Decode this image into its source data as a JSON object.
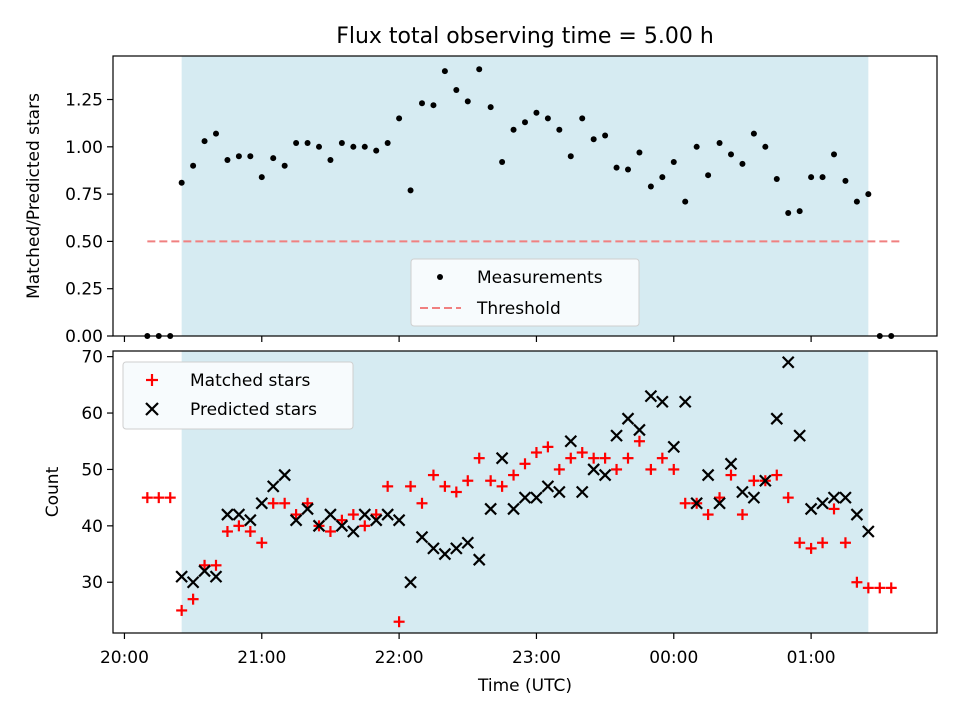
{
  "title": "Flux total observing time = 5.00 h",
  "colors": {
    "observing_window": "#add8e6",
    "measurement": "#000000",
    "threshold": "#f08080",
    "matched": "#ff0000",
    "predicted": "#000000"
  },
  "chart_data": [
    {
      "type": "scatter",
      "panel": "top",
      "title": "Flux total observing time = 5.00 h",
      "xlabel": "",
      "ylabel": "Matched/Predicted stars",
      "ylim": [
        0,
        1.48
      ],
      "yticks": [
        0,
        0.25,
        0.5,
        0.75,
        1.0,
        1.25
      ],
      "ytick_labels": [
        "0.00",
        "0.25",
        "0.50",
        "0.75",
        "1.00",
        "1.25"
      ],
      "observing_window": [
        "20:25",
        "01:25"
      ],
      "legend": {
        "placement": "lower center",
        "entries": [
          "Measurements",
          "Threshold"
        ]
      },
      "threshold": {
        "name": "Threshold",
        "y": 0.5,
        "x_range": [
          "20:10",
          "01:40"
        ]
      },
      "series": [
        {
          "name": "Measurements",
          "x": [
            "20:10",
            "20:15",
            "20:20",
            "20:25",
            "20:30",
            "20:35",
            "20:40",
            "20:45",
            "20:50",
            "20:55",
            "21:00",
            "21:05",
            "21:10",
            "21:15",
            "21:20",
            "21:25",
            "21:30",
            "21:35",
            "21:40",
            "21:45",
            "21:50",
            "21:55",
            "22:00",
            "22:05",
            "22:10",
            "22:15",
            "22:20",
            "22:25",
            "22:30",
            "22:35",
            "22:40",
            "22:45",
            "22:50",
            "22:55",
            "23:00",
            "23:05",
            "23:10",
            "23:15",
            "23:20",
            "23:25",
            "23:30",
            "23:35",
            "23:40",
            "23:45",
            "23:50",
            "23:55",
            "00:00",
            "00:05",
            "00:10",
            "00:15",
            "00:20",
            "00:25",
            "00:30",
            "00:35",
            "00:40",
            "00:45",
            "00:50",
            "00:55",
            "01:00",
            "01:05",
            "01:10",
            "01:15",
            "01:20",
            "01:25",
            "01:30",
            "01:35"
          ],
          "y": [
            0.0,
            0.0,
            0.0,
            0.81,
            0.9,
            1.03,
            1.07,
            0.93,
            0.95,
            0.95,
            0.84,
            0.94,
            0.9,
            1.02,
            1.02,
            1.0,
            0.93,
            1.02,
            1.0,
            1.0,
            0.98,
            1.02,
            1.15,
            0.77,
            1.23,
            1.22,
            1.4,
            1.3,
            1.24,
            1.41,
            1.21,
            0.92,
            1.09,
            1.13,
            1.18,
            1.15,
            1.09,
            0.95,
            1.15,
            1.04,
            1.06,
            0.89,
            0.88,
            0.97,
            0.79,
            0.84,
            0.92,
            0.71,
            1.0,
            0.85,
            1.02,
            0.96,
            0.91,
            1.07,
            1.0,
            0.83,
            0.65,
            0.66,
            0.84,
            0.84,
            0.96,
            0.82,
            0.71,
            0.75,
            0.0,
            0.0
          ]
        }
      ]
    },
    {
      "type": "scatter",
      "panel": "bottom",
      "xlabel": "Time (UTC)",
      "ylabel": "Count",
      "ylim": [
        21,
        71
      ],
      "yticks": [
        30,
        40,
        50,
        60,
        70
      ],
      "ytick_labels": [
        "30",
        "40",
        "50",
        "60",
        "70"
      ],
      "xlim": [
        "19:55",
        "01:55"
      ],
      "xticks": [
        "20:00",
        "21:00",
        "22:00",
        "23:00",
        "00:00",
        "01:00"
      ],
      "observing_window": [
        "20:25",
        "01:25"
      ],
      "legend": {
        "placement": "upper left",
        "entries": [
          "Matched stars",
          "Predicted stars"
        ]
      },
      "series": [
        {
          "name": "Matched stars",
          "marker": "+",
          "x": [
            "20:10",
            "20:15",
            "20:20",
            "20:25",
            "20:30",
            "20:35",
            "20:40",
            "20:45",
            "20:50",
            "20:55",
            "21:00",
            "21:05",
            "21:10",
            "21:15",
            "21:20",
            "21:25",
            "21:30",
            "21:35",
            "21:40",
            "21:45",
            "21:50",
            "21:55",
            "22:00",
            "22:05",
            "22:10",
            "22:15",
            "22:20",
            "22:25",
            "22:30",
            "22:35",
            "22:40",
            "22:45",
            "22:50",
            "22:55",
            "23:00",
            "23:05",
            "23:10",
            "23:15",
            "23:20",
            "23:25",
            "23:30",
            "23:35",
            "23:40",
            "23:45",
            "23:50",
            "23:55",
            "00:00",
            "00:05",
            "00:10",
            "00:15",
            "00:20",
            "00:25",
            "00:30",
            "00:35",
            "00:40",
            "00:45",
            "00:50",
            "00:55",
            "01:00",
            "01:05",
            "01:10",
            "01:15",
            "01:20",
            "01:25",
            "01:30",
            "01:35"
          ],
          "y": [
            45,
            45,
            45,
            25,
            27,
            33,
            33,
            39,
            40,
            39,
            37,
            44,
            44,
            42,
            44,
            40,
            39,
            41,
            42,
            40,
            42,
            47,
            23,
            47,
            44,
            49,
            47,
            46,
            48,
            52,
            48,
            47,
            49,
            51,
            53,
            54,
            50,
            52,
            53,
            52,
            52,
            50,
            52,
            55,
            50,
            52,
            50,
            44,
            44,
            42,
            45,
            49,
            42,
            48,
            48,
            49,
            45,
            37,
            36,
            37,
            43,
            37,
            30,
            29,
            29,
            29
          ]
        },
        {
          "name": "Predicted stars",
          "marker": "x",
          "x": [
            "20:25",
            "20:30",
            "20:35",
            "20:40",
            "20:45",
            "20:50",
            "20:55",
            "21:00",
            "21:05",
            "21:10",
            "21:15",
            "21:20",
            "21:25",
            "21:30",
            "21:35",
            "21:40",
            "21:45",
            "21:50",
            "21:55",
            "22:00",
            "22:05",
            "22:10",
            "22:15",
            "22:20",
            "22:25",
            "22:30",
            "22:35",
            "22:40",
            "22:45",
            "22:50",
            "22:55",
            "23:00",
            "23:05",
            "23:10",
            "23:15",
            "23:20",
            "23:25",
            "23:30",
            "23:35",
            "23:40",
            "23:45",
            "23:50",
            "23:55",
            "00:00",
            "00:05",
            "00:10",
            "00:15",
            "00:20",
            "00:25",
            "00:30",
            "00:35",
            "00:40",
            "00:45",
            "00:50",
            "00:55",
            "01:00",
            "01:05",
            "01:10",
            "01:15",
            "01:20",
            "01:25"
          ],
          "y": [
            31,
            30,
            32,
            31,
            42,
            42,
            41,
            44,
            47,
            49,
            41,
            43,
            40,
            42,
            40,
            39,
            42,
            41,
            42,
            41,
            30,
            38,
            36,
            35,
            36,
            37,
            34,
            43,
            52,
            43,
            45,
            45,
            47,
            46,
            55,
            46,
            50,
            49,
            56,
            59,
            57,
            63,
            62,
            54,
            62,
            44,
            49,
            44,
            51,
            46,
            45,
            48,
            59,
            69,
            56,
            43,
            44,
            45,
            45,
            42,
            39
          ]
        }
      ]
    }
  ]
}
